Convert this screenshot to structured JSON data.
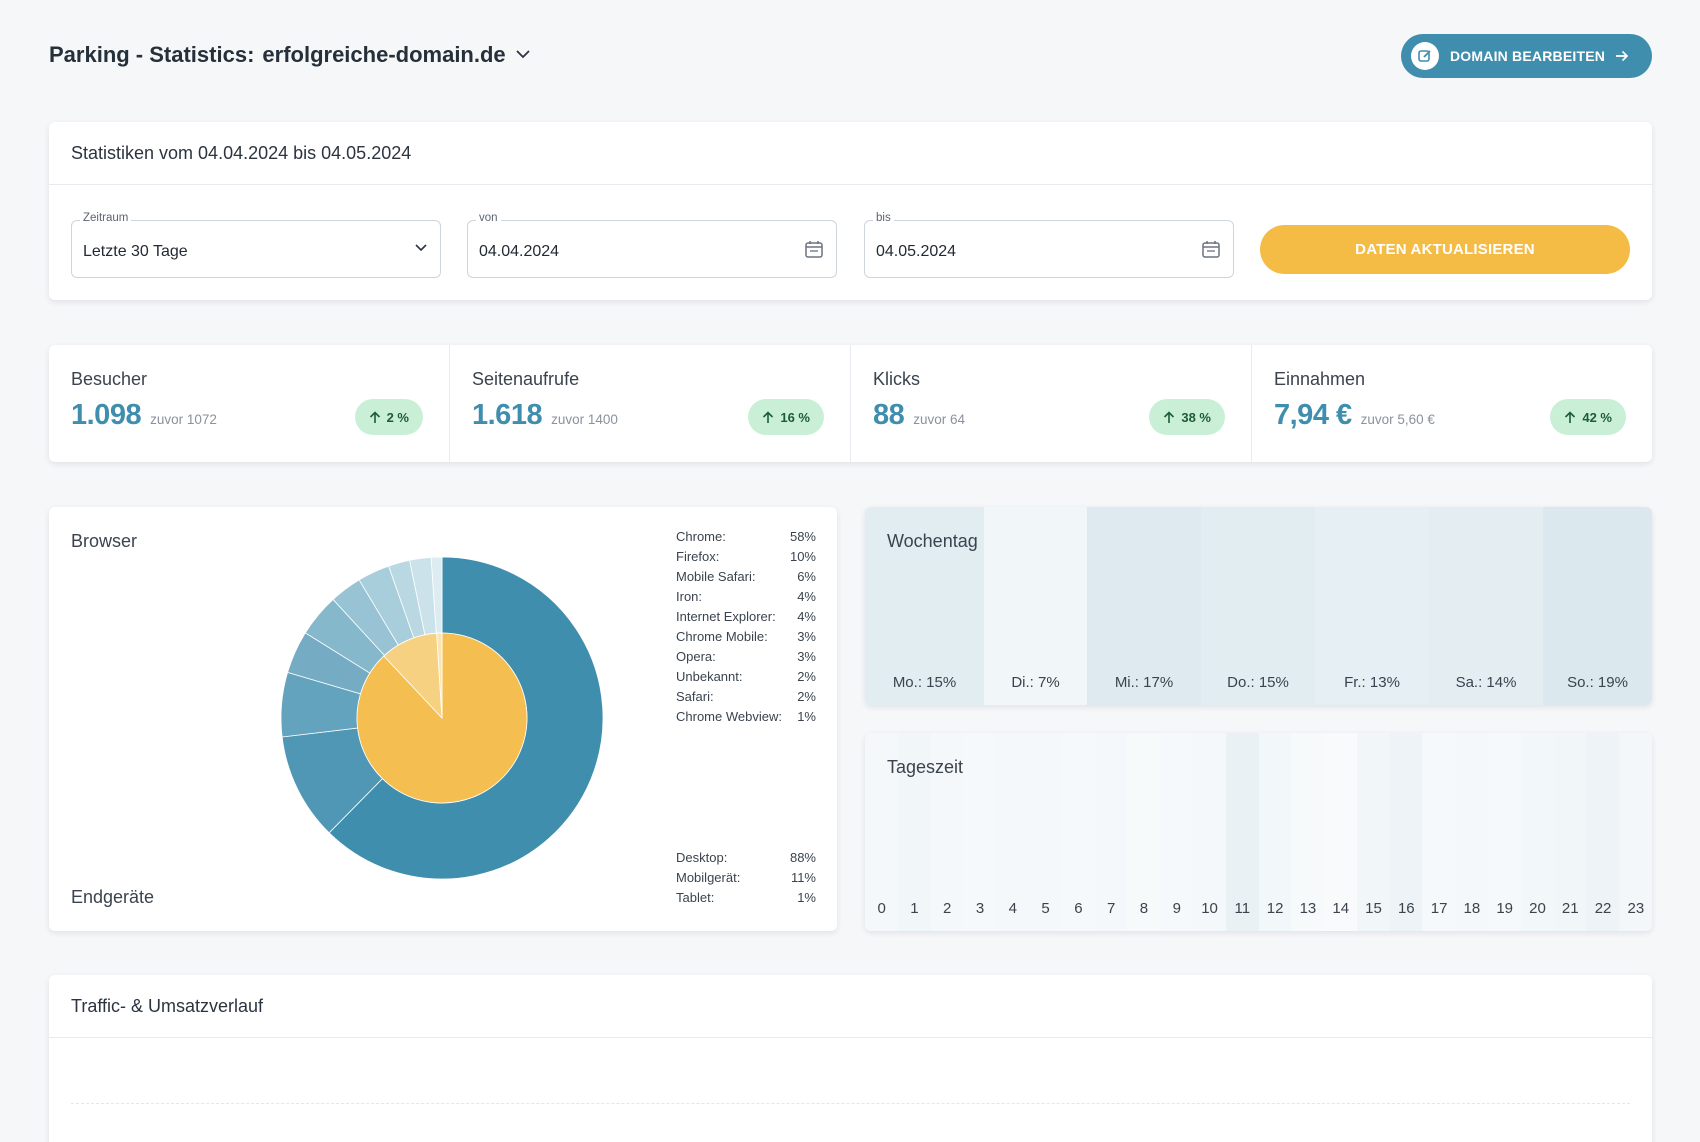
{
  "header": {
    "title_prefix": "Parking - Statistics:",
    "domain": "erfolgreiche-domain.de",
    "edit_button": "DOMAIN BEARBEITEN"
  },
  "filters": {
    "title": "Statistiken vom 04.04.2024 bis 04.05.2024",
    "zeitraum_label": "Zeitraum",
    "zeitraum_value": "Letzte 30 Tage",
    "von_label": "von",
    "von_value": "04.04.2024",
    "bis_label": "bis",
    "bis_value": "04.05.2024",
    "update_button": "DATEN AKTUALISIEREN"
  },
  "kpis": [
    {
      "label": "Besucher",
      "value": "1.098",
      "previous": "zuvor 1072",
      "change": "2 %"
    },
    {
      "label": "Seitenaufrufe",
      "value": "1.618",
      "previous": "zuvor 1400",
      "change": "16 %"
    },
    {
      "label": "Klicks",
      "value": "88",
      "previous": "zuvor 64",
      "change": "38 %"
    },
    {
      "label": "Einnahmen",
      "value": "7,94 €",
      "previous": "zuvor 5,60 €",
      "change": "42 %"
    }
  ],
  "browser": {
    "title": "Browser",
    "devices_title": "Endgeräte",
    "browsers": [
      {
        "name": "Chrome:",
        "pct": "58%"
      },
      {
        "name": "Firefox:",
        "pct": "10%"
      },
      {
        "name": "Mobile Safari:",
        "pct": "6%"
      },
      {
        "name": "Iron:",
        "pct": "4%"
      },
      {
        "name": "Internet Explorer:",
        "pct": "4%"
      },
      {
        "name": "Chrome Mobile:",
        "pct": "3%"
      },
      {
        "name": "Opera:",
        "pct": "3%"
      },
      {
        "name": "Unbekannt:",
        "pct": "2%"
      },
      {
        "name": "Safari:",
        "pct": "2%"
      },
      {
        "name": "Chrome Webview:",
        "pct": "1%"
      }
    ],
    "devices": [
      {
        "name": "Desktop:",
        "pct": "88%"
      },
      {
        "name": "Mobilgerät:",
        "pct": "11%"
      },
      {
        "name": "Tablet:",
        "pct": "1%"
      }
    ]
  },
  "wochentag": {
    "title": "Wochentag",
    "days": [
      "Mo.: 15%",
      "Di.: 7%",
      "Mi.: 17%",
      "Do.: 15%",
      "Fr.: 13%",
      "Sa.: 14%",
      "So.: 19%"
    ]
  },
  "tageszeit": {
    "title": "Tageszeit",
    "hours": [
      "0",
      "1",
      "2",
      "3",
      "4",
      "5",
      "6",
      "7",
      "8",
      "9",
      "10",
      "11",
      "12",
      "13",
      "14",
      "15",
      "16",
      "17",
      "18",
      "19",
      "20",
      "21",
      "22",
      "23"
    ]
  },
  "traffic": {
    "title": "Traffic- & Umsatzverlauf"
  },
  "chart_data": [
    {
      "type": "pie",
      "title": "Browser",
      "categories": [
        "Chrome",
        "Firefox",
        "Mobile Safari",
        "Iron",
        "Internet Explorer",
        "Chrome Mobile",
        "Opera",
        "Unbekannt",
        "Safari",
        "Chrome Webview"
      ],
      "values": [
        58,
        10,
        6,
        4,
        4,
        3,
        3,
        2,
        2,
        1
      ]
    },
    {
      "type": "pie",
      "title": "Endgeräte",
      "categories": [
        "Desktop",
        "Mobilgerät",
        "Tablet"
      ],
      "values": [
        88,
        11,
        1
      ]
    },
    {
      "type": "heatmap",
      "title": "Wochentag",
      "categories": [
        "Mo.",
        "Di.",
        "Mi.",
        "Do.",
        "Fr.",
        "Sa.",
        "So."
      ],
      "values": [
        15,
        7,
        17,
        15,
        13,
        14,
        19
      ]
    }
  ],
  "colors": {
    "accent": "#3f8eae",
    "yellow": "#f4bb45",
    "badge_green": "#c9f0d6"
  }
}
